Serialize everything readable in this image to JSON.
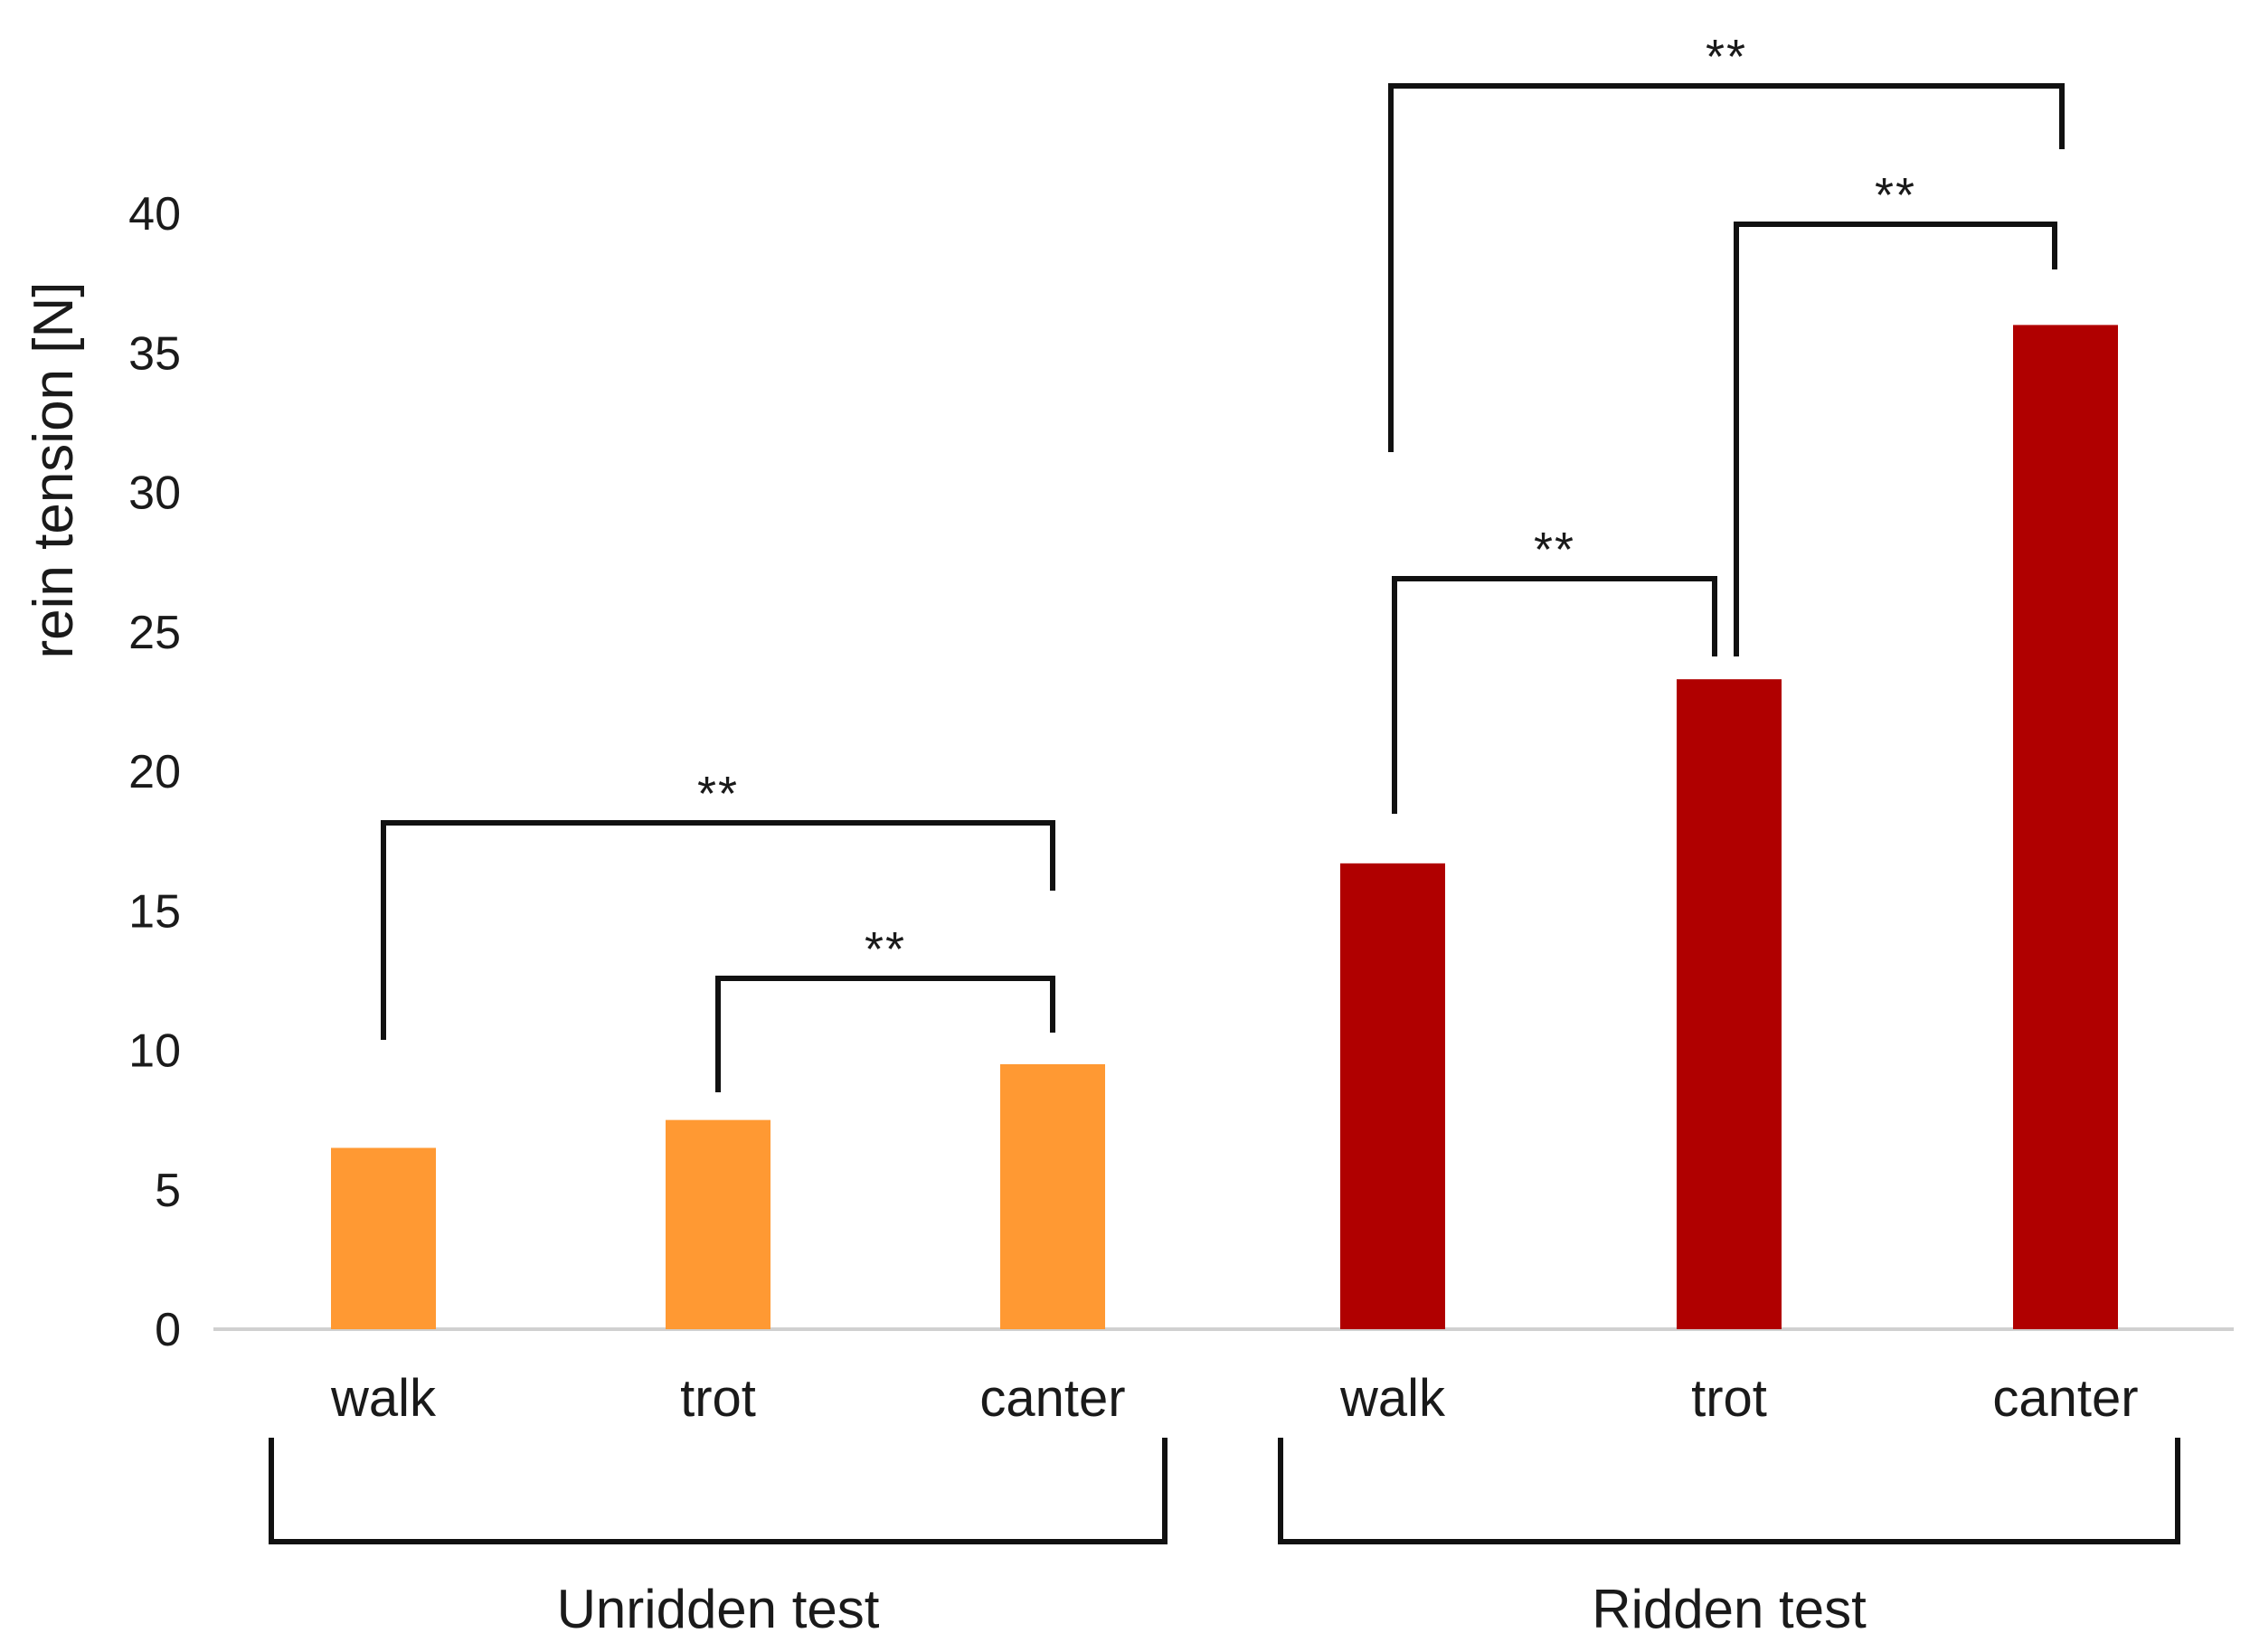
{
  "chart_data": {
    "type": "bar",
    "title": "",
    "xlabel": "",
    "ylabel": "rein tension [N]",
    "ylim": [
      0,
      40
    ],
    "yticks": [
      "0",
      "5",
      "10",
      "15",
      "20",
      "25",
      "30",
      "35",
      "40"
    ],
    "grid": false,
    "groups": [
      {
        "name": "Unridden test",
        "color": "#FF9933",
        "categories": [
          "walk",
          "trot",
          "canter"
        ],
        "values": [
          6.5,
          7.5,
          9.5
        ]
      },
      {
        "name": "Ridden test",
        "color": "#B00000",
        "categories": [
          "walk",
          "trot",
          "canter"
        ],
        "values": [
          16.7,
          23.3,
          36.0
        ]
      }
    ],
    "significance": [
      {
        "group": 0,
        "from": 0,
        "to": 2,
        "label": "**"
      },
      {
        "group": 0,
        "from": 1,
        "to": 2,
        "label": "**"
      },
      {
        "group": 1,
        "from": 0,
        "to": 2,
        "label": "**"
      },
      {
        "group": 1,
        "from": 1,
        "to": 2,
        "label": "**"
      },
      {
        "group": 1,
        "from": 0,
        "to": 1,
        "label": "**"
      }
    ]
  }
}
